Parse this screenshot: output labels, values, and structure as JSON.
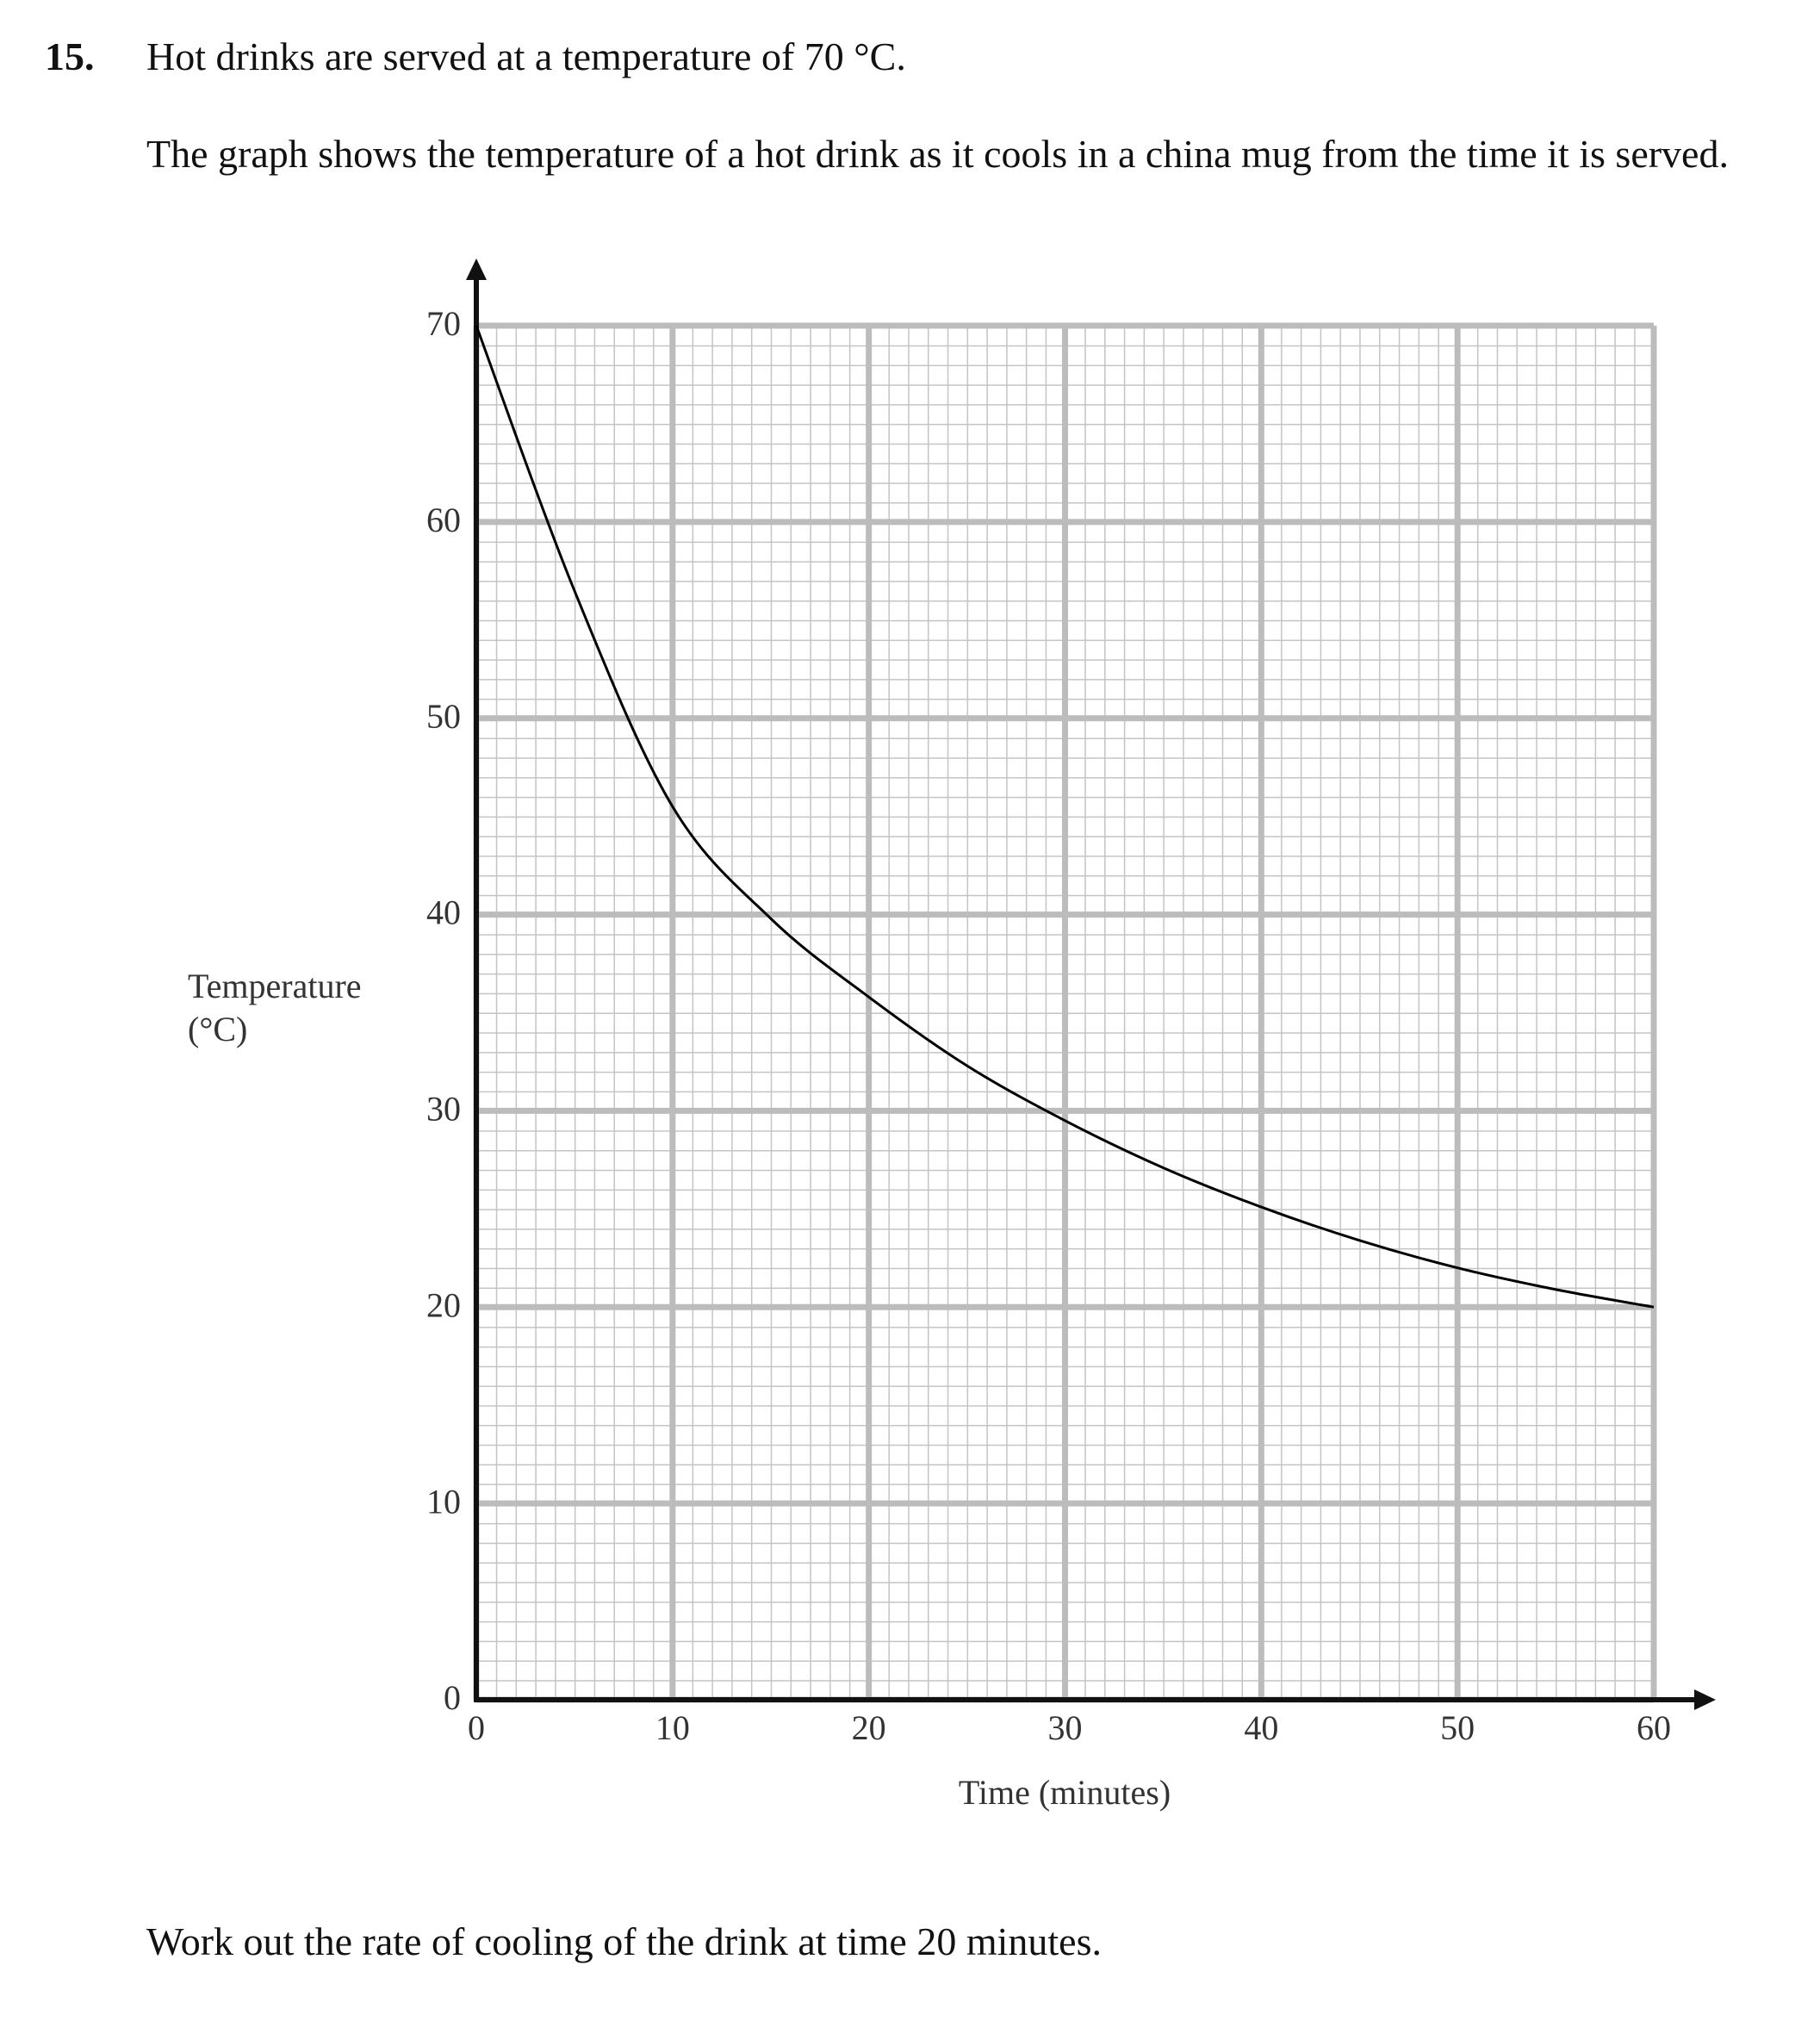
{
  "question_number": "15.",
  "intro": "Hot drinks are served at a temperature of 70 °C.",
  "description": "The graph shows the temperature of a hot drink as it cools in a china mug from the time it is served.",
  "chart_data": {
    "type": "line",
    "xlabel": "Time (minutes)",
    "ylabel": "Temperature (°C)",
    "x": [
      0,
      5,
      10,
      15,
      20,
      25,
      30,
      35,
      40,
      45,
      50,
      55,
      60
    ],
    "series": [
      {
        "color": "#000000",
        "values": [
          70,
          56.5,
          45.5,
          39.8,
          35.8,
          32.3,
          29.5,
          27.1,
          25.1,
          23.4,
          22.0,
          20.9,
          20.0
        ]
      }
    ],
    "xlim": [
      0,
      60
    ],
    "ylim": [
      0,
      70
    ],
    "xticks": [
      0,
      10,
      20,
      30,
      40,
      50,
      60
    ],
    "yticks": [
      0,
      10,
      20,
      30,
      40,
      50,
      60,
      70
    ],
    "grid": true
  },
  "prompt": "Work out the rate of cooling of the drink at time 20 minutes."
}
